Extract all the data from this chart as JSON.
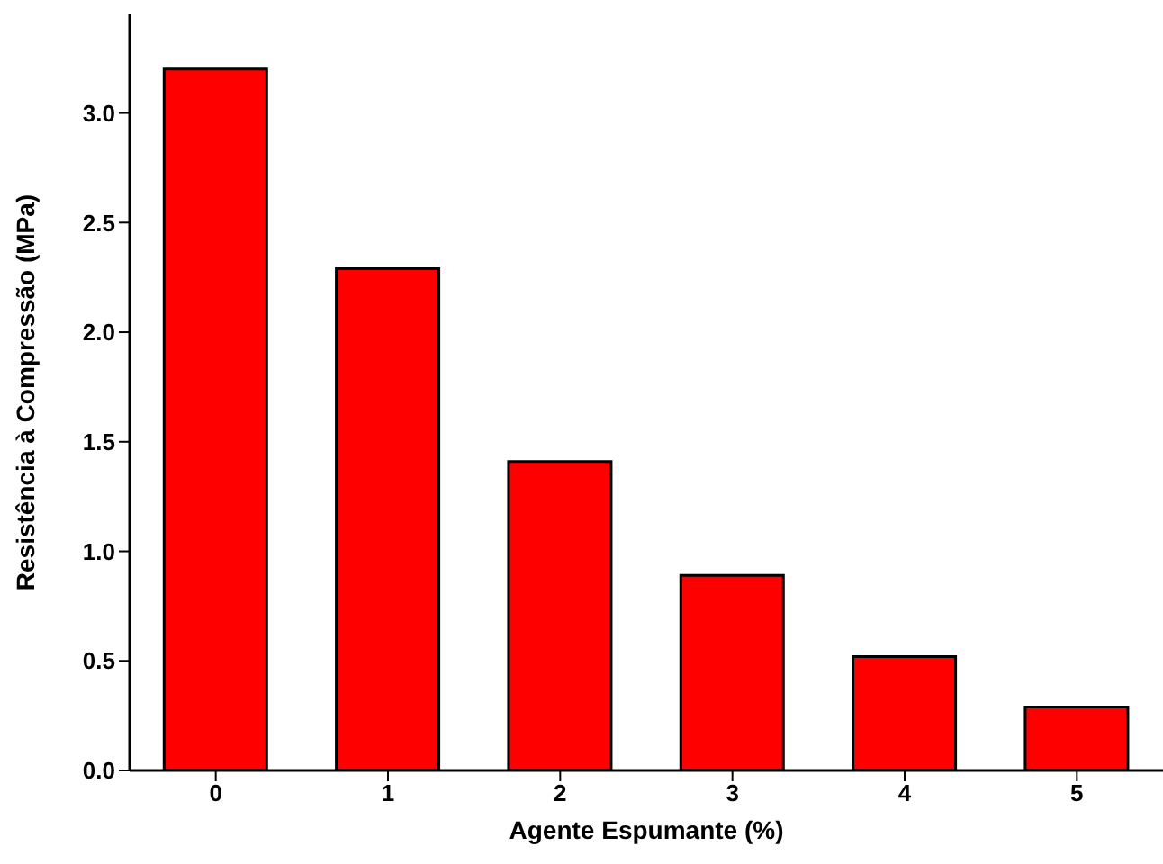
{
  "chart_data": {
    "type": "bar",
    "xlabel": "Agente Espumante (%)",
    "ylabel": "Resistência à Compressão (MPa)",
    "categories": [
      "0",
      "1",
      "2",
      "3",
      "4",
      "5"
    ],
    "values": [
      3.2,
      2.29,
      1.41,
      0.89,
      0.52,
      0.29
    ],
    "color": "#ff0000",
    "ylim": [
      0,
      3.45
    ],
    "yticks": [
      {
        "value": 0,
        "label": "0.0"
      },
      {
        "value": 0.5,
        "label": "0.5"
      },
      {
        "value": 1,
        "label": "1.0"
      },
      {
        "value": 1.5,
        "label": "1.5"
      },
      {
        "value": 2,
        "label": "2.0"
      },
      {
        "value": 2.5,
        "label": "2.5"
      },
      {
        "value": 3,
        "label": "3.0"
      }
    ],
    "grid": false
  }
}
